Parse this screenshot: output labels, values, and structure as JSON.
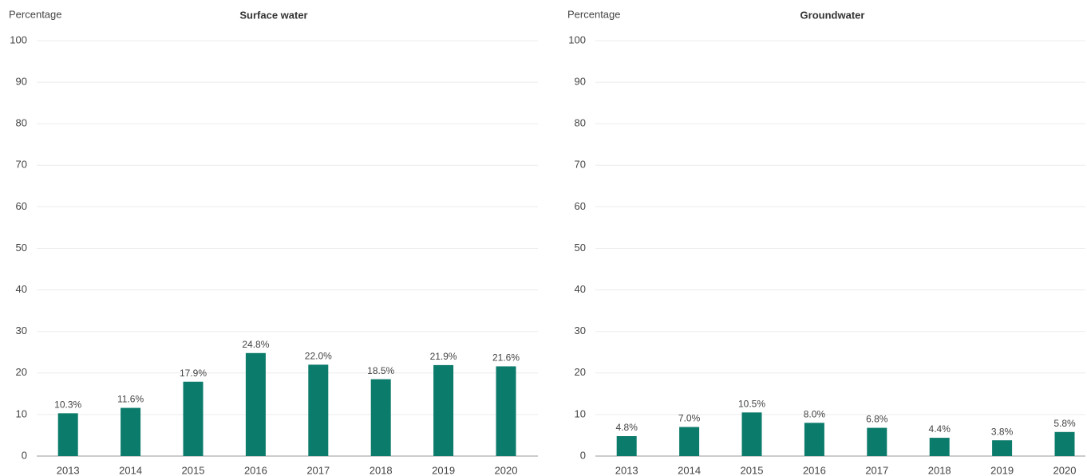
{
  "chart_data": [
    {
      "type": "bar",
      "title": "Surface water",
      "y_label": "Percentage",
      "categories": [
        "2013",
        "2014",
        "2015",
        "2016",
        "2017",
        "2018",
        "2019",
        "2020"
      ],
      "values": [
        10.3,
        11.6,
        17.9,
        24.8,
        22.0,
        18.5,
        21.9,
        21.6
      ],
      "value_labels": [
        "10.3%",
        "11.6%",
        "17.9%",
        "24.8%",
        "22.0%",
        "18.5%",
        "21.9%",
        "21.6%"
      ],
      "color": "#0b7b6b",
      "ylim": [
        0,
        100
      ],
      "yticks": [
        0,
        10,
        20,
        30,
        40,
        50,
        60,
        70,
        80,
        90,
        100
      ],
      "grid": true
    },
    {
      "type": "bar",
      "title": "Groundwater",
      "y_label": "Percentage",
      "categories": [
        "2013",
        "2014",
        "2015",
        "2016",
        "2017",
        "2018",
        "2019",
        "2020"
      ],
      "values": [
        4.8,
        7.0,
        10.5,
        8.0,
        6.8,
        4.4,
        3.8,
        5.8
      ],
      "value_labels": [
        "4.8%",
        "7.0%",
        "10.5%",
        "8.0%",
        "6.8%",
        "4.4%",
        "3.8%",
        "5.8%"
      ],
      "color": "#0b7b6b",
      "ylim": [
        0,
        100
      ],
      "yticks": [
        0,
        10,
        20,
        30,
        40,
        50,
        60,
        70,
        80,
        90,
        100
      ],
      "grid": true
    }
  ]
}
